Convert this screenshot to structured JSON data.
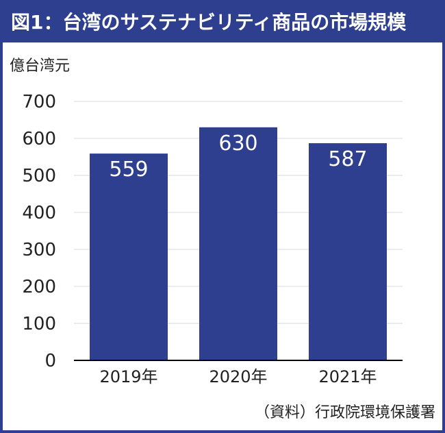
{
  "title": "図1：台湾のサステナビリティ商品の市場規模",
  "unit_label": "億台湾元",
  "source": "（資料）行政院環境保護署",
  "colors": {
    "bar": "#2e3f8f",
    "title_bg": "#2e3f8f",
    "grid": "#d9d9d9",
    "axis": "#000000"
  },
  "chart_data": {
    "type": "bar",
    "categories": [
      "2019年",
      "2020年",
      "2021年"
    ],
    "values": [
      559,
      630,
      587
    ],
    "data_labels": [
      "559",
      "630",
      "587"
    ],
    "ylabel": "億台湾元",
    "xlabel": "",
    "ylim": [
      0,
      700
    ],
    "yticks": [
      0,
      100,
      200,
      300,
      400,
      500,
      600,
      700
    ],
    "grid": true,
    "legend": "none"
  }
}
